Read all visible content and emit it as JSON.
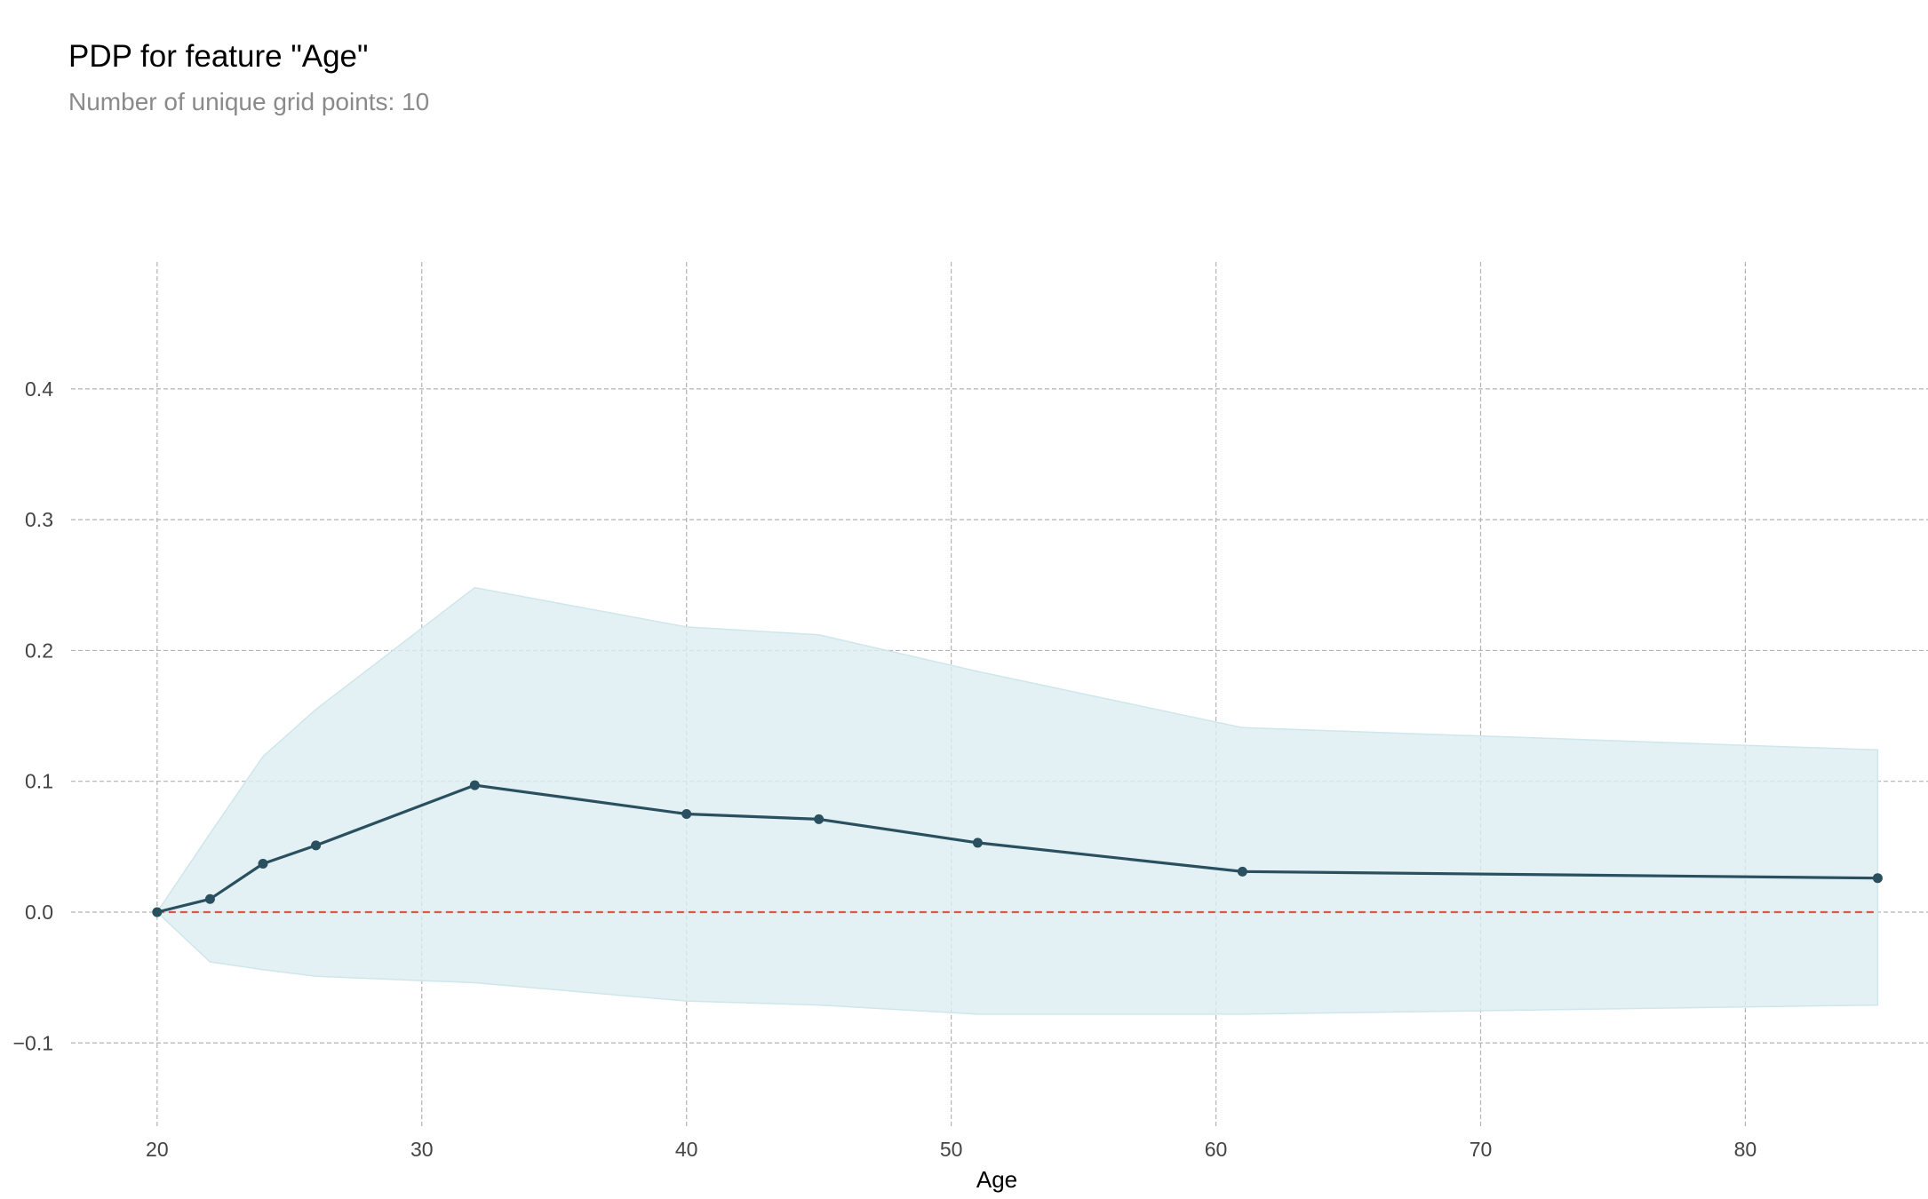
{
  "chart_data": {
    "type": "line",
    "title": "PDP for feature \"Age\"",
    "subtitle": "Number of unique grid points: 10",
    "xlabel": "Age",
    "ylabel": "",
    "x": [
      20,
      22,
      24,
      26,
      32,
      40,
      45,
      51,
      61,
      85
    ],
    "series": [
      {
        "values": [
          0.0,
          0.01,
          0.037,
          0.051,
          0.097,
          0.075,
          0.071,
          0.053,
          0.031,
          0.026
        ],
        "lower": [
          0.0,
          -0.038,
          -0.044,
          -0.049,
          -0.054,
          -0.068,
          -0.071,
          -0.078,
          -0.078,
          -0.071
        ],
        "upper": [
          0.0,
          0.06,
          0.119,
          0.155,
          0.248,
          0.218,
          0.212,
          0.184,
          0.141,
          0.124
        ]
      }
    ],
    "xticks": [
      20,
      30,
      40,
      50,
      60,
      70,
      80
    ],
    "yticks": [
      -0.1,
      0.0,
      0.1,
      0.2,
      0.3,
      0.4
    ],
    "ytick_labels": [
      "−0.1",
      "0.0",
      "0.1",
      "0.2",
      "0.3",
      "0.4"
    ],
    "xlim": [
      16.75,
      86.9
    ],
    "ylim": [
      -0.165,
      0.497
    ],
    "baseline": 0.0,
    "grid": true,
    "colors": {
      "line": "#2a4f5e",
      "band": "#dceef3",
      "band_edge": "#cfe6ec",
      "baseline": "#d75a48",
      "grid": "#b3b3b3"
    }
  }
}
